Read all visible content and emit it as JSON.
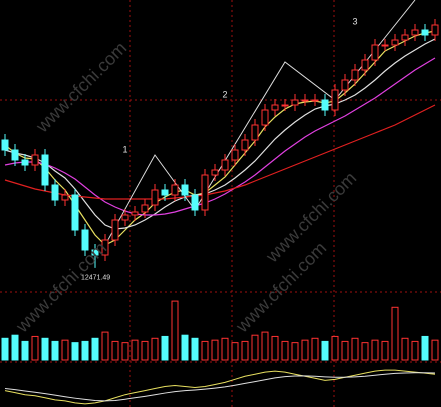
{
  "chart_data": {
    "type": "candlestick",
    "open": [
      13750,
      13650,
      13550,
      13500,
      13600,
      13300,
      13150,
      13200,
      12850,
      12650,
      12600,
      12750,
      12950,
      13000,
      13030,
      13100,
      13250,
      13200,
      13300,
      13200,
      13050,
      13400,
      13450,
      13550,
      13650,
      13750,
      13900,
      14050,
      14100,
      14100,
      14150,
      14150,
      14150,
      14050,
      14250,
      14350,
      14450,
      14550,
      14700,
      14700,
      14750,
      14800,
      14850,
      14800
    ],
    "high": [
      13810,
      13710,
      13610,
      13660,
      13660,
      13360,
      13260,
      13260,
      12910,
      12710,
      12810,
      13010,
      13060,
      13090,
      13160,
      13310,
      13310,
      13360,
      13360,
      13260,
      13460,
      13510,
      13610,
      13710,
      13810,
      13960,
      14110,
      14160,
      14160,
      14210,
      14210,
      14210,
      14210,
      14310,
      14410,
      14510,
      14610,
      14760,
      14760,
      14810,
      14860,
      14910,
      14910,
      14960
    ],
    "low": [
      13590,
      13490,
      13440,
      13440,
      13240,
      13090,
      13090,
      12790,
      12590,
      12471.49,
      12540,
      12690,
      12890,
      12940,
      12970,
      13040,
      13140,
      13140,
      13140,
      12990,
      12990,
      13340,
      13390,
      13490,
      13590,
      13690,
      13840,
      13990,
      14040,
      14040,
      14090,
      14090,
      13990,
      13990,
      14190,
      14290,
      14390,
      14490,
      14640,
      14640,
      14690,
      14740,
      14740,
      14740
    ],
    "close": [
      13650,
      13550,
      13500,
      13600,
      13300,
      13150,
      13200,
      12850,
      12650,
      12600,
      12750,
      12950,
      13000,
      13030,
      13100,
      13250,
      13200,
      13300,
      13200,
      13050,
      13400,
      13450,
      13550,
      13650,
      13750,
      13900,
      14050,
      14100,
      14100,
      14150,
      14150,
      14150,
      14050,
      14250,
      14350,
      14450,
      14550,
      14700,
      14700,
      14750,
      14800,
      14850,
      14800,
      14900
    ],
    "up_color": "#ff3232",
    "down_color": "#54fcfc",
    "ylim": [
      12250,
      15150
    ],
    "lines": [
      {
        "color": "#e8e060",
        "values": [
          13700,
          13620,
          13570,
          13560,
          13470,
          13350,
          13250,
          13100,
          12950,
          12800,
          12700,
          12750,
          12850,
          12950,
          13020,
          13120,
          13180,
          13230,
          13250,
          13200,
          13220,
          13300,
          13380,
          13500,
          13620,
          13740,
          13880,
          13980,
          14060,
          14110,
          14130,
          14140,
          14120,
          14140,
          14220,
          14310,
          14420,
          14530,
          14640,
          14690,
          14740,
          14790,
          14820,
          14840
        ]
      },
      {
        "color": "#e0e0e0",
        "values": [
          13650,
          13620,
          13600,
          13570,
          13520,
          13440,
          13370,
          13260,
          13130,
          13000,
          12900,
          12860,
          12870,
          12900,
          12950,
          13010,
          13080,
          13140,
          13180,
          13200,
          13210,
          13250,
          13300,
          13370,
          13450,
          13540,
          13650,
          13760,
          13850,
          13930,
          14000,
          14060,
          14090,
          14110,
          14150,
          14200,
          14270,
          14350,
          14440,
          14520,
          14590,
          14650,
          14710,
          14760
        ]
      },
      {
        "color": "#e040e0",
        "values": [
          13500,
          13520,
          13530,
          13530,
          13510,
          13470,
          13420,
          13360,
          13280,
          13200,
          13130,
          13080,
          13040,
          13010,
          13000,
          13000,
          13010,
          13030,
          13060,
          13090,
          13120,
          13160,
          13210,
          13270,
          13330,
          13400,
          13480,
          13560,
          13640,
          13710,
          13780,
          13840,
          13890,
          13940,
          13990,
          14050,
          14110,
          14170,
          14240,
          14310,
          14380,
          14450,
          14510,
          14570
        ]
      },
      {
        "color": "#e02020",
        "values": [
          13350,
          13320,
          13290,
          13260,
          13240,
          13220,
          13200,
          13190,
          13180,
          13170,
          13160,
          13160,
          13160,
          13160,
          13160,
          13160,
          13160,
          13170,
          13180,
          13190,
          13200,
          13220,
          13240,
          13270,
          13300,
          13340,
          13380,
          13420,
          13460,
          13500,
          13540,
          13580,
          13620,
          13660,
          13700,
          13740,
          13780,
          13820,
          13860,
          13900,
          13950,
          14000,
          14050,
          14100
        ]
      }
    ],
    "zigzag_x": [
      10,
      15,
      19,
      28,
      33,
      41
    ],
    "zigzag_values": [
      12700,
      13600,
      13050,
      14530,
      14150,
      15150
    ],
    "annotations": [
      {
        "text": "1",
        "x": 12,
        "y": 13650
      },
      {
        "text": "2",
        "x": 22,
        "y": 14200
      },
      {
        "text": "3",
        "x": 35,
        "y": 14930
      }
    ],
    "volume": [
      35,
      40,
      30,
      38,
      35,
      30,
      32,
      28,
      30,
      35,
      45,
      30,
      28,
      32,
      30,
      35,
      38,
      95,
      40,
      35,
      30,
      32,
      35,
      28,
      30,
      40,
      45,
      38,
      30,
      28,
      32,
      35,
      30,
      38,
      30,
      35,
      28,
      32,
      30,
      85,
      35,
      30,
      38,
      32
    ],
    "volume_ylim": [
      0,
      100
    ],
    "macd_ylim": [
      -100,
      100
    ],
    "macd_lines": [
      {
        "color": "#e8e060",
        "values": [
          -20,
          -30,
          -40,
          -45,
          -55,
          -65,
          -70,
          -80,
          -85,
          -80,
          -70,
          -55,
          -40,
          -30,
          -20,
          -10,
          0,
          5,
          0,
          -5,
          0,
          10,
          20,
          35,
          50,
          60,
          70,
          75,
          70,
          60,
          50,
          40,
          30,
          35,
          45,
          55,
          65,
          75,
          80,
          80,
          75,
          70,
          65,
          60
        ]
      },
      {
        "color": "#e0e0e0",
        "values": [
          -10,
          -15,
          -22,
          -28,
          -35,
          -42,
          -50,
          -57,
          -63,
          -68,
          -70,
          -68,
          -62,
          -55,
          -48,
          -40,
          -32,
          -25,
          -20,
          -17,
          -13,
          -8,
          -2,
          6,
          15,
          24,
          33,
          42,
          48,
          51,
          52,
          50,
          47,
          45,
          45,
          47,
          50,
          55,
          60,
          64,
          66,
          67,
          67,
          66
        ]
      }
    ],
    "watermark": "www.cfchi.com"
  }
}
